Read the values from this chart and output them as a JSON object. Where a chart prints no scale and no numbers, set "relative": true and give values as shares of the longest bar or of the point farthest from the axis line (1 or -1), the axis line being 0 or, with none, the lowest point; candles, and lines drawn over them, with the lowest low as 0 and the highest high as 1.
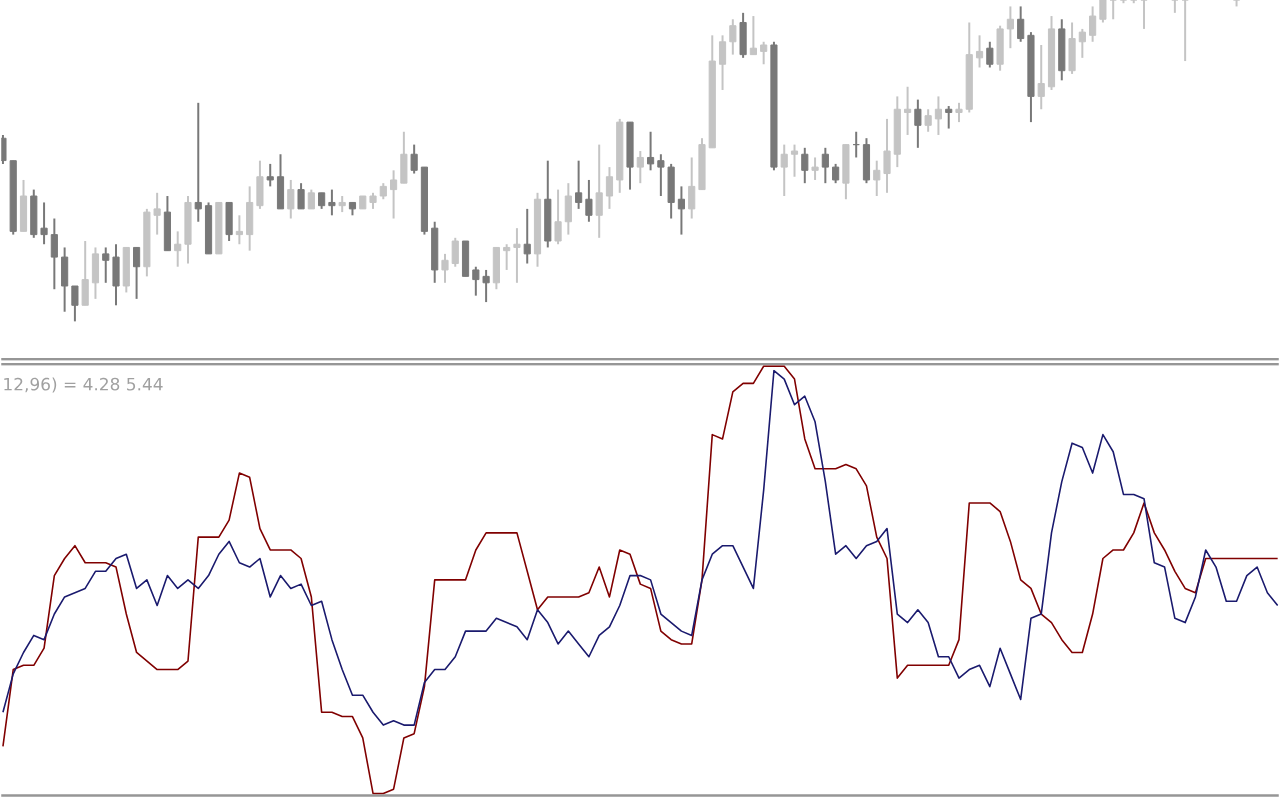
{
  "chart_data": [
    {
      "type": "candlestick",
      "relative": true,
      "categories": [
        null,
        null,
        null,
        null,
        null,
        null,
        null,
        null,
        null,
        null,
        null,
        null,
        null,
        null,
        null,
        null,
        null,
        null,
        null,
        null,
        null,
        null,
        null,
        null,
        null,
        null,
        null,
        null,
        null,
        null,
        null,
        null,
        null,
        null,
        null,
        null,
        null,
        null,
        null,
        null,
        null,
        null,
        null,
        null,
        null,
        null,
        null,
        null,
        null,
        null,
        null,
        null,
        null,
        null,
        null,
        null,
        null,
        null,
        null,
        null,
        null,
        null,
        null,
        null,
        null,
        null,
        null,
        null,
        null,
        null,
        null,
        null,
        null,
        null,
        null,
        null,
        null,
        null,
        null,
        null,
        null,
        null,
        null,
        null,
        null,
        null,
        null,
        null,
        null,
        null,
        null,
        null,
        null,
        null,
        null,
        null,
        null,
        null,
        null,
        null,
        null,
        null,
        null,
        null,
        null,
        null,
        null,
        null,
        null,
        null,
        null,
        null,
        null,
        null,
        null,
        null,
        null,
        null,
        null,
        null,
        null,
        null,
        null,
        null,
        null
      ],
      "ohlc": [
        [
          0.57,
          0.58,
          0.49,
          0.5
        ],
        [
          0.5,
          0.5,
          0.27,
          0.28
        ],
        [
          0.28,
          0.44,
          0.28,
          0.39
        ],
        [
          0.39,
          0.41,
          0.26,
          0.27
        ],
        [
          0.29,
          0.37,
          0.24,
          0.27
        ],
        [
          0.27,
          0.32,
          0.1,
          0.2
        ],
        [
          0.2,
          0.23,
          0.03,
          0.11
        ],
        [
          0.11,
          0.11,
          0,
          0.05
        ],
        [
          0.05,
          0.25,
          0.05,
          0.13
        ],
        [
          0.12,
          0.23,
          0.07,
          0.21
        ],
        [
          0.21,
          0.23,
          0.12,
          0.19
        ],
        [
          0.2,
          0.24,
          0.05,
          0.11
        ],
        [
          0.11,
          0.23,
          0.09,
          0.23
        ],
        [
          0.23,
          0.23,
          0.07,
          0.17
        ],
        [
          0.17,
          0.35,
          0.14,
          0.34
        ],
        [
          0.33,
          0.4,
          0.27,
          0.35
        ],
        [
          0.34,
          0.39,
          0.22,
          0.22
        ],
        [
          0.22,
          0.28,
          0.17,
          0.24
        ],
        [
          0.24,
          0.39,
          0.18,
          0.37
        ],
        [
          0.37,
          0.68,
          0.31,
          0.35
        ],
        [
          0.36,
          0.37,
          0.21,
          0.21
        ],
        [
          0.21,
          0.37,
          0.21,
          0.37
        ],
        [
          0.37,
          0.37,
          0.25,
          0.27
        ],
        [
          0.27,
          0.33,
          0.24,
          0.28
        ],
        [
          0.27,
          0.42,
          0.22,
          0.37
        ],
        [
          0.36,
          0.5,
          0.35,
          0.45
        ],
        [
          0.45,
          0.49,
          0.42,
          0.44
        ],
        [
          0.45,
          0.52,
          0.35,
          0.35
        ],
        [
          0.35,
          0.44,
          0.32,
          0.41
        ],
        [
          0.41,
          0.43,
          0.35,
          0.35
        ],
        [
          0.35,
          0.41,
          0.35,
          0.4
        ],
        [
          0.4,
          0.4,
          0.35,
          0.36
        ],
        [
          0.37,
          0.41,
          0.33,
          0.36
        ],
        [
          0.36,
          0.39,
          0.34,
          0.37
        ],
        [
          0.37,
          0.37,
          0.33,
          0.35
        ],
        [
          0.35,
          0.39,
          0.35,
          0.39
        ],
        [
          0.37,
          0.4,
          0.35,
          0.39
        ],
        [
          0.39,
          0.43,
          0.38,
          0.42
        ],
        [
          0.41,
          0.47,
          0.32,
          0.44
        ],
        [
          0.43,
          0.59,
          0.43,
          0.52
        ],
        [
          0.52,
          0.55,
          0.46,
          0.47
        ],
        [
          0.48,
          0.48,
          0.27,
          0.28
        ],
        [
          0.29,
          0.31,
          0.12,
          0.16
        ],
        [
          0.16,
          0.21,
          0.12,
          0.19
        ],
        [
          0.18,
          0.26,
          0.17,
          0.25
        ],
        [
          0.25,
          0.25,
          0.14,
          0.14
        ],
        [
          0.16,
          0.17,
          0.08,
          0.13
        ],
        [
          0.14,
          0.16,
          0.06,
          0.12
        ],
        [
          0.12,
          0.23,
          0.1,
          0.23
        ],
        [
          0.22,
          0.24,
          0.16,
          0.23
        ],
        [
          0.23,
          0.29,
          0.12,
          0.24
        ],
        [
          0.24,
          0.35,
          0.18,
          0.21
        ],
        [
          0.21,
          0.4,
          0.17,
          0.38
        ],
        [
          0.38,
          0.5,
          0.23,
          0.25
        ],
        [
          0.25,
          0.41,
          0.24,
          0.31
        ],
        [
          0.31,
          0.43,
          0.27,
          0.39
        ],
        [
          0.4,
          0.5,
          0.35,
          0.37
        ],
        [
          0.38,
          0.44,
          0.31,
          0.33
        ],
        [
          0.33,
          0.55,
          0.26,
          0.4
        ],
        [
          0.39,
          0.48,
          0.35,
          0.45
        ],
        [
          0.44,
          0.63,
          0.4,
          0.62
        ],
        [
          0.62,
          0.62,
          0.41,
          0.48
        ],
        [
          0.48,
          0.53,
          0.43,
          0.51
        ],
        [
          0.51,
          0.59,
          0.47,
          0.49
        ],
        [
          0.5,
          0.52,
          0.39,
          0.48
        ],
        [
          0.48,
          0.49,
          0.32,
          0.37
        ],
        [
          0.38,
          0.42,
          0.27,
          0.35
        ],
        [
          0.35,
          0.51,
          0.32,
          0.42
        ],
        [
          0.41,
          0.57,
          0.41,
          0.55
        ],
        [
          0.54,
          0.89,
          0.54,
          0.81
        ],
        [
          0.8,
          0.89,
          0.72,
          0.87
        ],
        [
          0.87,
          0.94,
          0.83,
          0.92
        ],
        [
          0.93,
          0.96,
          0.82,
          0.83
        ],
        [
          0.83,
          0.95,
          0.83,
          0.85
        ],
        [
          0.84,
          0.87,
          0.8,
          0.86
        ],
        [
          0.86,
          0.87,
          0.47,
          0.48
        ],
        [
          0.48,
          0.55,
          0.39,
          0.52
        ],
        [
          0.52,
          0.55,
          0.45,
          0.53
        ],
        [
          0.52,
          0.54,
          0.43,
          0.47
        ],
        [
          0.47,
          0.51,
          0.44,
          0.48
        ],
        [
          0.52,
          0.54,
          0.43,
          0.48
        ],
        [
          0.48,
          0.49,
          0.43,
          0.44
        ],
        [
          0.43,
          0.55,
          0.38,
          0.55
        ],
        [
          0.55,
          0.59,
          0.51,
          0.55
        ],
        [
          0.55,
          0.57,
          0.43,
          0.44
        ],
        [
          0.44,
          0.5,
          0.39,
          0.47
        ],
        [
          0.46,
          0.63,
          0.4,
          0.53
        ],
        [
          0.52,
          0.7,
          0.48,
          0.66
        ],
        [
          0.65,
          0.73,
          0.58,
          0.66
        ],
        [
          0.66,
          0.69,
          0.54,
          0.61
        ],
        [
          0.61,
          0.66,
          0.59,
          0.64
        ],
        [
          0.63,
          0.7,
          0.58,
          0.66
        ],
        [
          0.66,
          0.67,
          0.6,
          0.65
        ],
        [
          0.65,
          0.68,
          0.62,
          0.66
        ],
        [
          0.66,
          0.93,
          0.65,
          0.83
        ],
        [
          0.82,
          0.89,
          0.79,
          0.84
        ],
        [
          0.85,
          0.87,
          0.79,
          0.8
        ],
        [
          0.8,
          0.92,
          0.78,
          0.91
        ],
        [
          0.91,
          0.98,
          0.85,
          0.94
        ],
        [
          0.94,
          0.98,
          0.87,
          0.88
        ],
        [
          0.89,
          0.9,
          0.62,
          0.7
        ],
        [
          0.7,
          0.86,
          0.66,
          0.74
        ],
        [
          0.73,
          0.95,
          0.72,
          0.91
        ],
        [
          0.91,
          0.94,
          0.75,
          0.78
        ],
        [
          0.78,
          0.93,
          0.77,
          0.88
        ],
        [
          0.87,
          0.91,
          0.82,
          0.9
        ],
        [
          0.89,
          0.98,
          0.87,
          0.95
        ],
        [
          0.94,
          1,
          0.93,
          1
        ],
        [
          1,
          1,
          0.94,
          1
        ],
        [
          1,
          1,
          0.99,
          1
        ],
        [
          1,
          1,
          0.99,
          1
        ],
        [
          1,
          1,
          0.91,
          1
        ],
        null,
        null,
        [
          1,
          1,
          0.96,
          1
        ],
        [
          1,
          1,
          0.81,
          1
        ],
        null,
        null,
        null,
        null,
        [
          1,
          1,
          0.98,
          1
        ],
        null,
        null,
        null,
        null
      ],
      "colors": [
        "#787878",
        "#787878",
        "#c4c4c4",
        "#787878",
        "#787878",
        "#787878",
        "#787878",
        "#787878",
        "#c4c4c4",
        "#c4c4c4",
        "#787878",
        "#787878",
        "#c4c4c4",
        "#787878",
        "#c4c4c4",
        "#c4c4c4",
        "#787878",
        "#c4c4c4",
        "#c4c4c4",
        "#787878",
        "#787878",
        "#c4c4c4",
        "#787878",
        "#c4c4c4",
        "#c4c4c4",
        "#c4c4c4",
        "#787878",
        "#787878",
        "#c4c4c4",
        "#787878",
        "#c4c4c4",
        "#787878",
        "#787878",
        "#c4c4c4",
        "#787878",
        "#c4c4c4",
        "#c4c4c4",
        "#c4c4c4",
        "#c4c4c4",
        "#c4c4c4",
        "#787878",
        "#787878",
        "#787878",
        "#c4c4c4",
        "#c4c4c4",
        "#787878",
        "#787878",
        "#787878",
        "#c4c4c4",
        "#c4c4c4",
        "#c4c4c4",
        "#787878",
        "#c4c4c4",
        "#787878",
        "#c4c4c4",
        "#c4c4c4",
        "#787878",
        "#787878",
        "#c4c4c4",
        "#c4c4c4",
        "#c4c4c4",
        "#787878",
        "#c4c4c4",
        "#787878",
        "#787878",
        "#787878",
        "#787878",
        "#c4c4c4",
        "#c4c4c4",
        "#c4c4c4",
        "#c4c4c4",
        "#c4c4c4",
        "#787878",
        "#c4c4c4",
        "#c4c4c4",
        "#787878",
        "#c4c4c4",
        "#c4c4c4",
        "#787878",
        "#c4c4c4",
        "#787878",
        "#787878",
        "#c4c4c4",
        "#787878",
        "#787878",
        "#c4c4c4",
        "#c4c4c4",
        "#c4c4c4",
        "#c4c4c4",
        "#787878",
        "#c4c4c4",
        "#c4c4c4",
        "#787878",
        "#c4c4c4",
        "#c4c4c4",
        "#c4c4c4",
        "#787878",
        "#c4c4c4",
        "#c4c4c4",
        "#787878",
        "#787878",
        "#c4c4c4",
        "#c4c4c4",
        "#787878",
        "#c4c4c4",
        "#c4c4c4",
        "#c4c4c4",
        "#c4c4c4",
        "#c4c4c4",
        "#c4c4c4",
        "#c4c4c4",
        "#c4c4c4",
        null,
        null,
        "#c4c4c4",
        "#c4c4c4",
        null,
        null,
        null,
        null,
        "#c4c4c4",
        null,
        null,
        null,
        null
      ]
    },
    {
      "type": "line",
      "relative": true,
      "annotations": [
        "12,96) = 4.28 5.44"
      ],
      "categories": [
        null,
        null,
        null,
        null,
        null,
        null,
        null,
        null,
        null,
        null,
        null,
        null,
        null,
        null,
        null,
        null,
        null,
        null,
        null,
        null,
        null,
        null,
        null,
        null,
        null,
        null,
        null,
        null,
        null,
        null,
        null,
        null,
        null,
        null,
        null,
        null,
        null,
        null,
        null,
        null,
        null,
        null,
        null,
        null,
        null,
        null,
        null,
        null,
        null,
        null,
        null,
        null,
        null,
        null,
        null,
        null,
        null,
        null,
        null,
        null,
        null,
        null,
        null,
        null,
        null,
        null,
        null,
        null,
        null,
        null,
        null,
        null,
        null,
        null,
        null,
        null,
        null,
        null,
        null,
        null,
        null,
        null,
        null,
        null,
        null,
        null,
        null,
        null,
        null,
        null,
        null,
        null,
        null,
        null,
        null,
        null,
        null,
        null,
        null,
        null,
        null,
        null,
        null,
        null,
        null,
        null,
        null,
        null,
        null,
        null,
        null,
        null,
        null,
        null,
        null,
        null,
        null,
        null,
        null,
        null,
        null,
        null,
        null,
        null,
        null
      ],
      "series": [
        {
          "color": "#800000",
          "values": [
            0.11,
            0.29,
            0.3,
            0.3,
            0.34,
            0.51,
            0.55,
            0.58,
            0.54,
            0.54,
            0.54,
            0.53,
            0.42,
            0.33,
            0.31,
            0.29,
            0.29,
            0.29,
            0.31,
            0.6,
            0.6,
            0.6,
            0.64,
            0.75,
            0.74,
            0.62,
            0.57,
            0.57,
            0.57,
            0.55,
            0.46,
            0.19,
            0.19,
            0.18,
            0.18,
            0.13,
            0,
            0,
            0.01,
            0.13,
            0.14,
            0.25,
            0.5,
            0.5,
            0.5,
            0.5,
            0.57,
            0.61,
            0.61,
            0.61,
            0.61,
            0.52,
            0.43,
            0.46,
            0.46,
            0.46,
            0.46,
            0.47,
            0.53,
            0.46,
            0.57,
            0.56,
            0.49,
            0.48,
            0.38,
            0.36,
            0.35,
            0.35,
            0.5,
            0.84,
            0.83,
            0.94,
            0.96,
            0.96,
            1,
            1,
            1,
            0.97,
            0.83,
            0.76,
            0.76,
            0.76,
            0.77,
            0.76,
            0.72,
            0.6,
            0.55,
            0.27,
            0.3,
            0.3,
            0.3,
            0.3,
            0.3,
            0.36,
            0.68,
            0.68,
            0.68,
            0.66,
            0.59,
            0.5,
            0.48,
            0.42,
            0.4,
            0.36,
            0.33,
            0.33,
            0.42,
            0.55,
            0.57,
            0.57,
            0.61,
            0.68,
            0.61,
            0.57,
            0.52,
            0.48,
            0.47,
            0.55,
            0.55,
            0.55,
            0.55,
            0.55,
            0.55,
            0.55,
            0.55
          ]
        },
        {
          "color": "#1a1a6e",
          "values": [
            0.19,
            0.28,
            0.33,
            0.37,
            0.36,
            0.42,
            0.46,
            0.47,
            0.48,
            0.52,
            0.52,
            0.55,
            0.56,
            0.48,
            0.5,
            0.44,
            0.51,
            0.48,
            0.5,
            0.48,
            0.51,
            0.56,
            0.59,
            0.54,
            0.53,
            0.55,
            0.46,
            0.51,
            0.48,
            0.49,
            0.44,
            0.45,
            0.36,
            0.29,
            0.23,
            0.23,
            0.19,
            0.16,
            0.17,
            0.16,
            0.16,
            0.26,
            0.29,
            0.29,
            0.32,
            0.38,
            0.38,
            0.38,
            0.41,
            0.4,
            0.39,
            0.36,
            0.43,
            0.4,
            0.35,
            0.38,
            0.35,
            0.32,
            0.37,
            0.39,
            0.44,
            0.51,
            0.51,
            0.5,
            0.42,
            0.4,
            0.38,
            0.37,
            0.5,
            0.56,
            0.58,
            0.58,
            0.53,
            0.48,
            0.71,
            0.99,
            0.97,
            0.91,
            0.93,
            0.87,
            0.73,
            0.56,
            0.58,
            0.55,
            0.58,
            0.59,
            0.62,
            0.42,
            0.4,
            0.43,
            0.4,
            0.32,
            0.32,
            0.27,
            0.29,
            0.3,
            0.25,
            0.34,
            0.28,
            0.22,
            0.41,
            0.42,
            0.61,
            0.73,
            0.82,
            0.81,
            0.75,
            0.84,
            0.8,
            0.7,
            0.7,
            0.69,
            0.54,
            0.53,
            0.41,
            0.4,
            0.46,
            0.57,
            0.53,
            0.45,
            0.45,
            0.51,
            0.53,
            0.47,
            0.44
          ]
        }
      ]
    }
  ]
}
